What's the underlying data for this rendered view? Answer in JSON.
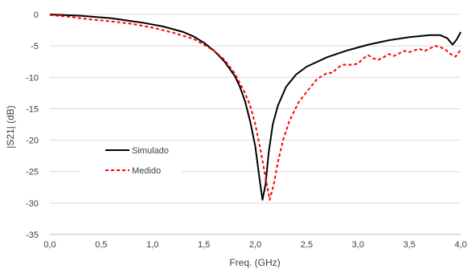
{
  "chart_data": {
    "type": "line",
    "title": "",
    "xlabel": "Freq. (GHz)",
    "ylabel": "|S21| (dB)",
    "xlim": [
      0.0,
      4.0
    ],
    "ylim": [
      -35,
      0
    ],
    "x_ticks": [
      "0,0",
      "0,5",
      "1,0",
      "1,5",
      "2,0",
      "2,5",
      "3,0",
      "3,5",
      "4,0"
    ],
    "y_ticks": [
      "0",
      "-5",
      "-10",
      "-15",
      "-20",
      "-25",
      "-30",
      "-35"
    ],
    "grid": "horizontal",
    "legend_position": "lower-left",
    "series": [
      {
        "name": "Simulado",
        "color": "#000000",
        "style": "solid",
        "points": [
          [
            0.0,
            0.0
          ],
          [
            0.3,
            -0.2
          ],
          [
            0.6,
            -0.6
          ],
          [
            0.9,
            -1.3
          ],
          [
            1.1,
            -1.9
          ],
          [
            1.3,
            -2.8
          ],
          [
            1.4,
            -3.5
          ],
          [
            1.5,
            -4.5
          ],
          [
            1.6,
            -5.8
          ],
          [
            1.7,
            -7.5
          ],
          [
            1.8,
            -9.8
          ],
          [
            1.85,
            -11.5
          ],
          [
            1.9,
            -13.8
          ],
          [
            1.95,
            -17.0
          ],
          [
            2.0,
            -21.0
          ],
          [
            2.04,
            -26.0
          ],
          [
            2.07,
            -29.5
          ],
          [
            2.1,
            -27.0
          ],
          [
            2.13,
            -22.0
          ],
          [
            2.17,
            -17.5
          ],
          [
            2.22,
            -14.5
          ],
          [
            2.3,
            -11.5
          ],
          [
            2.4,
            -9.5
          ],
          [
            2.5,
            -8.3
          ],
          [
            2.7,
            -6.8
          ],
          [
            2.9,
            -5.7
          ],
          [
            3.1,
            -4.8
          ],
          [
            3.3,
            -4.1
          ],
          [
            3.5,
            -3.6
          ],
          [
            3.7,
            -3.3
          ],
          [
            3.8,
            -3.3
          ],
          [
            3.87,
            -3.8
          ],
          [
            3.92,
            -4.8
          ],
          [
            3.96,
            -4.0
          ],
          [
            4.0,
            -2.8
          ]
        ]
      },
      {
        "name": "Medido",
        "color": "#ff0000",
        "style": "dashed",
        "points": [
          [
            0.0,
            -0.1
          ],
          [
            0.2,
            -0.4
          ],
          [
            0.4,
            -0.8
          ],
          [
            0.6,
            -1.1
          ],
          [
            0.8,
            -1.5
          ],
          [
            1.0,
            -2.1
          ],
          [
            1.2,
            -2.9
          ],
          [
            1.4,
            -3.9
          ],
          [
            1.5,
            -4.8
          ],
          [
            1.6,
            -5.8
          ],
          [
            1.7,
            -7.2
          ],
          [
            1.8,
            -9.4
          ],
          [
            1.9,
            -12.5
          ],
          [
            1.95,
            -14.5
          ],
          [
            2.0,
            -17.5
          ],
          [
            2.05,
            -21.5
          ],
          [
            2.1,
            -26.0
          ],
          [
            2.14,
            -29.5
          ],
          [
            2.18,
            -27.0
          ],
          [
            2.22,
            -23.5
          ],
          [
            2.27,
            -20.0
          ],
          [
            2.33,
            -17.0
          ],
          [
            2.42,
            -14.0
          ],
          [
            2.5,
            -12.3
          ],
          [
            2.6,
            -10.3
          ],
          [
            2.7,
            -9.3
          ],
          [
            2.75,
            -9.3
          ],
          [
            2.8,
            -8.5
          ],
          [
            2.85,
            -8.0
          ],
          [
            2.95,
            -8.0
          ],
          [
            3.0,
            -7.8
          ],
          [
            3.05,
            -7.0
          ],
          [
            3.1,
            -6.5
          ],
          [
            3.15,
            -7.0
          ],
          [
            3.2,
            -7.2
          ],
          [
            3.25,
            -6.8
          ],
          [
            3.3,
            -6.3
          ],
          [
            3.35,
            -6.6
          ],
          [
            3.4,
            -6.2
          ],
          [
            3.45,
            -5.8
          ],
          [
            3.5,
            -6.0
          ],
          [
            3.55,
            -5.7
          ],
          [
            3.6,
            -5.5
          ],
          [
            3.65,
            -5.8
          ],
          [
            3.7,
            -5.4
          ],
          [
            3.75,
            -5.0
          ],
          [
            3.8,
            -5.2
          ],
          [
            3.85,
            -5.6
          ],
          [
            3.9,
            -6.3
          ],
          [
            3.95,
            -6.7
          ],
          [
            4.0,
            -5.6
          ]
        ]
      }
    ]
  }
}
